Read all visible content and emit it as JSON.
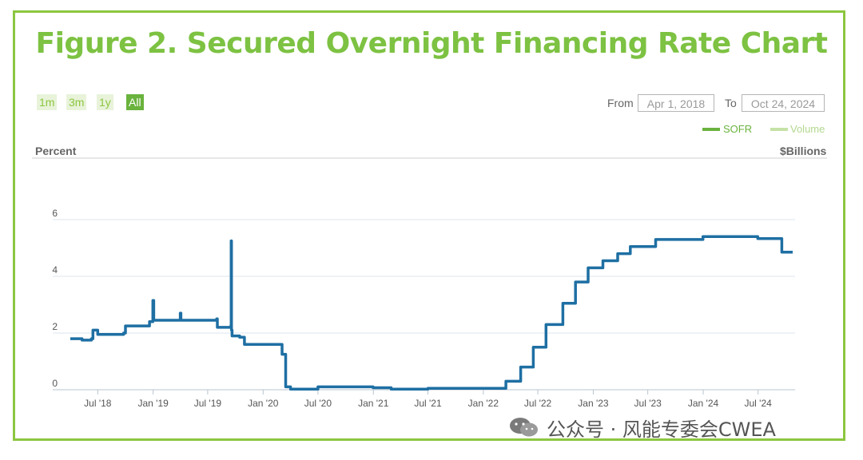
{
  "title": "Figure 2. Secured Overnight Financing Rate Chart",
  "range_buttons": [
    "1m",
    "3m",
    "1y",
    "All"
  ],
  "active_range": "All",
  "from_label": "From",
  "from_date": "Apr 1, 2018",
  "to_label": "To",
  "to_date": "Oct 24, 2024",
  "legend": {
    "sofr": "SOFR",
    "volume": "Volume"
  },
  "y_axis_left": "Percent",
  "y_axis_right": "$Billions",
  "watermark": "公众号 · 风能专委会CWEA",
  "colors": {
    "frame": "#8cc63f",
    "title": "#7dc242",
    "line": "#1e6fa3",
    "grid": "#dde6ef",
    "volume": "#b9dd98"
  },
  "chart_data": {
    "type": "line",
    "title": "Figure 2. Secured Overnight Financing Rate Chart",
    "ylabel": "Percent",
    "ylabel_right": "$Billions",
    "ylim": [
      0,
      8
    ],
    "yticks": [
      0,
      2,
      4,
      6
    ],
    "xlim": [
      "2018-04-01",
      "2024-10-24"
    ],
    "xtick_labels": [
      "Jul '18",
      "Jan '19",
      "Jul '19",
      "Jan '20",
      "Jul '20",
      "Jan '21",
      "Jul '21",
      "Jan '22",
      "Jul '22",
      "Jan '23",
      "Jul '23",
      "Jan '24",
      "Jul '24"
    ],
    "xtick_dates": [
      "2018-07-01",
      "2019-01-01",
      "2019-07-01",
      "2020-01-01",
      "2020-07-01",
      "2021-01-01",
      "2021-07-01",
      "2022-01-01",
      "2022-07-01",
      "2023-01-01",
      "2023-07-01",
      "2024-01-01",
      "2024-07-01"
    ],
    "legend_position": "top-right",
    "grid": true,
    "series": [
      {
        "name": "SOFR",
        "points": [
          [
            "2018-04-01",
            1.8
          ],
          [
            "2018-05-10",
            1.75
          ],
          [
            "2018-06-10",
            1.8
          ],
          [
            "2018-06-15",
            2.1
          ],
          [
            "2018-07-01",
            1.95
          ],
          [
            "2018-09-25",
            2.0
          ],
          [
            "2018-10-01",
            2.25
          ],
          [
            "2018-12-20",
            2.4
          ],
          [
            "2018-12-31",
            3.15
          ],
          [
            "2019-01-03",
            2.45
          ],
          [
            "2019-03-01",
            2.45
          ],
          [
            "2019-04-01",
            2.7
          ],
          [
            "2019-04-03",
            2.45
          ],
          [
            "2019-07-31",
            2.5
          ],
          [
            "2019-08-02",
            2.2
          ],
          [
            "2019-09-16",
            2.25
          ],
          [
            "2019-09-17",
            5.25
          ],
          [
            "2019-09-18",
            2.1
          ],
          [
            "2019-09-20",
            1.9
          ],
          [
            "2019-10-15",
            1.85
          ],
          [
            "2019-10-31",
            1.6
          ],
          [
            "2020-03-01",
            1.6
          ],
          [
            "2020-03-04",
            1.25
          ],
          [
            "2020-03-16",
            0.1
          ],
          [
            "2020-04-01",
            0.02
          ],
          [
            "2020-07-01",
            0.1
          ],
          [
            "2020-12-31",
            0.07
          ],
          [
            "2021-03-01",
            0.02
          ],
          [
            "2021-07-01",
            0.05
          ],
          [
            "2021-12-31",
            0.05
          ],
          [
            "2022-03-17",
            0.3
          ],
          [
            "2022-05-05",
            0.8
          ],
          [
            "2022-06-16",
            1.5
          ],
          [
            "2022-07-28",
            2.3
          ],
          [
            "2022-09-22",
            3.05
          ],
          [
            "2022-11-03",
            3.8
          ],
          [
            "2022-12-15",
            4.3
          ],
          [
            "2023-02-02",
            4.55
          ],
          [
            "2023-03-23",
            4.8
          ],
          [
            "2023-05-04",
            5.05
          ],
          [
            "2023-07-27",
            5.3
          ],
          [
            "2023-12-31",
            5.4
          ],
          [
            "2024-06-30",
            5.33
          ],
          [
            "2024-09-18",
            4.85
          ],
          [
            "2024-10-24",
            4.85
          ]
        ]
      }
    ]
  }
}
